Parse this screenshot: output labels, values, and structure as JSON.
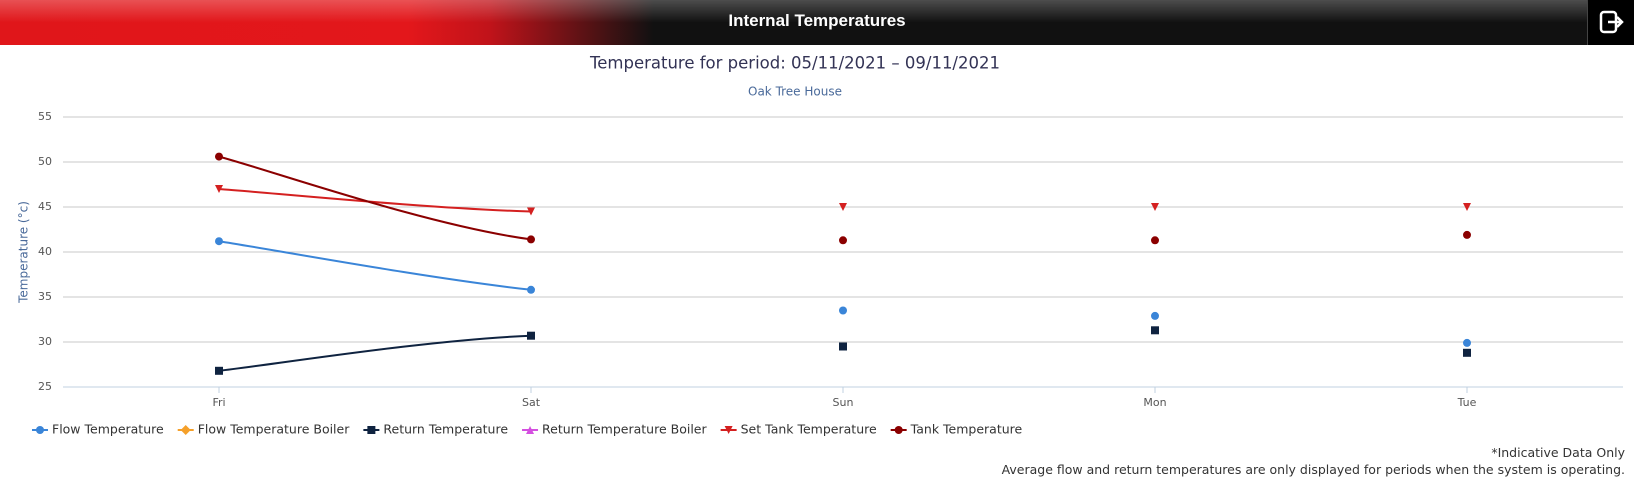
{
  "header": {
    "title": "Internal Temperatures"
  },
  "chart_data": {
    "type": "line",
    "title": "Temperature for period: 05/11/2021 – 09/11/2021",
    "subtitle": "Oak Tree House",
    "y_label": "Temperature (°c)",
    "categories": [
      "Fri",
      "Sat",
      "Sun",
      "Mon",
      "Tue"
    ],
    "ylim": [
      25,
      55
    ],
    "yticks": [
      25,
      30,
      35,
      40,
      45,
      50,
      55
    ],
    "grid": true,
    "series": [
      {
        "name": "Flow Temperature",
        "color": "#3a85d8",
        "marker": "circle",
        "values": [
          41.2,
          35.8,
          33.5,
          32.9,
          29.9
        ]
      },
      {
        "name": "Flow Temperature Boiler",
        "color": "#f5a02a",
        "marker": "diamond",
        "values": [
          null,
          null,
          null,
          null,
          null
        ]
      },
      {
        "name": "Return Temperature",
        "color": "#0f2340",
        "marker": "square",
        "values": [
          26.8,
          30.7,
          29.5,
          31.3,
          28.8
        ]
      },
      {
        "name": "Return Temperature Boiler",
        "color": "#d44fe0",
        "marker": "triangle",
        "values": [
          null,
          null,
          null,
          null,
          null
        ]
      },
      {
        "name": "Set Tank Temperature",
        "color": "#d42020",
        "marker": "triangle-down",
        "values": [
          47,
          44.5,
          45,
          45,
          45
        ]
      },
      {
        "name": "Tank Temperature",
        "color": "#8b0000",
        "marker": "circle",
        "values": [
          50.6,
          41.4,
          41.3,
          41.3,
          41.9
        ]
      }
    ],
    "notes": [
      "*Indicative Data Only",
      "Average flow and return temperatures are only displayed for periods when the system is operating."
    ]
  }
}
